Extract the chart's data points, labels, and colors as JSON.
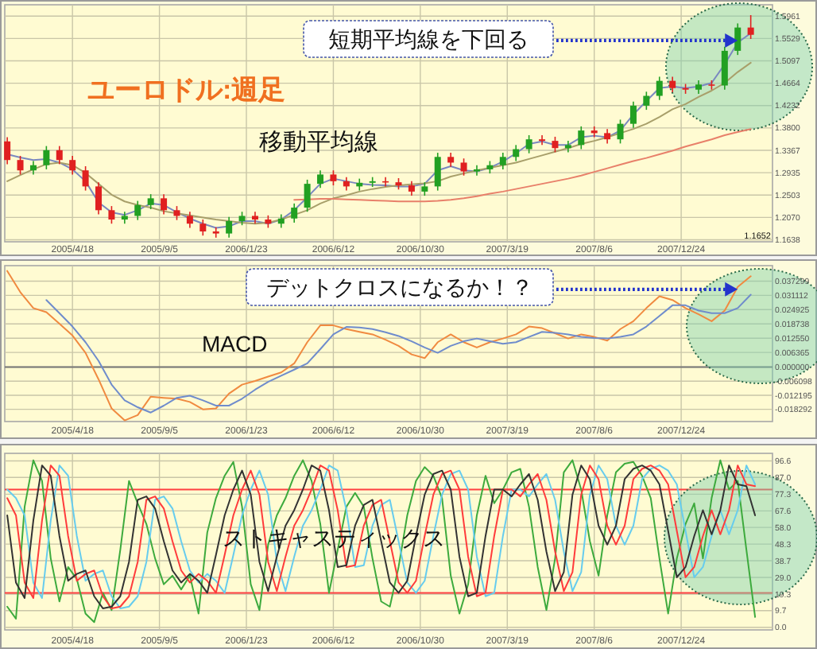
{
  "chart_data": [
    {
      "type": "candlestick",
      "title": "ユーロドル:週足",
      "x": [
        "2005-01-03",
        "2005-01-24",
        "2005-02-14",
        "2005-03-07",
        "2005-03-28",
        "2005-04-18",
        "2005-05-09",
        "2005-05-30",
        "2005-06-20",
        "2005-07-11",
        "2005-08-01",
        "2005-08-22",
        "2005-09-12",
        "2005-10-03",
        "2005-10-24",
        "2005-11-14",
        "2005-12-05",
        "2005-12-26",
        "2006-01-16",
        "2006-02-06",
        "2006-02-27",
        "2006-03-20",
        "2006-04-10",
        "2006-05-01",
        "2006-05-22",
        "2006-06-12",
        "2006-07-03",
        "2006-07-24",
        "2006-08-14",
        "2006-09-04",
        "2006-09-25",
        "2006-10-16",
        "2006-11-06",
        "2006-11-27",
        "2006-12-18",
        "2007-01-08",
        "2007-01-29",
        "2007-02-19",
        "2007-03-12",
        "2007-04-02",
        "2007-04-23",
        "2007-05-14",
        "2007-06-04",
        "2007-06-25",
        "2007-07-16",
        "2007-08-06",
        "2007-08-27",
        "2007-09-17",
        "2007-10-08",
        "2007-10-29",
        "2007-11-19",
        "2007-12-10",
        "2007-12-31",
        "2008-01-21",
        "2008-02-11",
        "2008-03-03",
        "2008-03-24",
        "2008-04-14"
      ],
      "ohlc": [
        [
          1.354,
          1.362,
          1.31,
          1.318
        ],
        [
          1.318,
          1.326,
          1.29,
          1.298
        ],
        [
          1.298,
          1.316,
          1.29,
          1.308
        ],
        [
          1.308,
          1.345,
          1.3,
          1.337
        ],
        [
          1.337,
          1.345,
          1.31,
          1.318
        ],
        [
          1.318,
          1.326,
          1.29,
          1.298
        ],
        [
          1.298,
          1.306,
          1.259,
          1.267
        ],
        [
          1.267,
          1.275,
          1.213,
          1.221
        ],
        [
          1.221,
          1.229,
          1.195,
          1.203
        ],
        [
          1.203,
          1.218,
          1.195,
          1.21
        ],
        [
          1.21,
          1.239,
          1.202,
          1.231
        ],
        [
          1.231,
          1.252,
          1.223,
          1.244
        ],
        [
          1.244,
          1.252,
          1.213,
          1.221
        ],
        [
          1.221,
          1.229,
          1.202,
          1.21
        ],
        [
          1.21,
          1.218,
          1.187,
          1.195
        ],
        [
          1.195,
          1.203,
          1.172,
          1.18
        ],
        [
          1.18,
          1.188,
          1.168,
          1.176
        ],
        [
          1.176,
          1.208,
          1.168,
          1.2
        ],
        [
          1.2,
          1.218,
          1.192,
          1.21
        ],
        [
          1.21,
          1.218,
          1.195,
          1.203
        ],
        [
          1.203,
          1.211,
          1.187,
          1.195
        ],
        [
          1.195,
          1.213,
          1.187,
          1.205
        ],
        [
          1.205,
          1.234,
          1.197,
          1.226
        ],
        [
          1.226,
          1.28,
          1.218,
          1.272
        ],
        [
          1.272,
          1.298,
          1.264,
          1.29
        ],
        [
          1.29,
          1.298,
          1.269,
          1.277
        ],
        [
          1.277,
          1.285,
          1.259,
          1.267
        ],
        [
          1.267,
          1.282,
          1.259,
          1.274
        ],
        [
          1.274,
          1.285,
          1.266,
          1.277
        ],
        [
          1.277,
          1.285,
          1.267,
          1.275
        ],
        [
          1.275,
          1.283,
          1.261,
          1.269
        ],
        [
          1.269,
          1.277,
          1.249,
          1.257
        ],
        [
          1.257,
          1.275,
          1.249,
          1.267
        ],
        [
          1.267,
          1.332,
          1.259,
          1.324
        ],
        [
          1.324,
          1.332,
          1.305,
          1.313
        ],
        [
          1.313,
          1.321,
          1.288,
          1.296
        ],
        [
          1.296,
          1.308,
          1.288,
          1.3
        ],
        [
          1.3,
          1.316,
          1.292,
          1.308
        ],
        [
          1.308,
          1.332,
          1.3,
          1.324
        ],
        [
          1.324,
          1.347,
          1.316,
          1.339
        ],
        [
          1.339,
          1.366,
          1.331,
          1.358
        ],
        [
          1.358,
          1.366,
          1.347,
          1.355
        ],
        [
          1.355,
          1.363,
          1.333,
          1.341
        ],
        [
          1.341,
          1.355,
          1.333,
          1.347
        ],
        [
          1.347,
          1.383,
          1.339,
          1.375
        ],
        [
          1.375,
          1.383,
          1.362,
          1.37
        ],
        [
          1.37,
          1.378,
          1.35,
          1.358
        ],
        [
          1.358,
          1.396,
          1.35,
          1.388
        ],
        [
          1.388,
          1.431,
          1.38,
          1.423
        ],
        [
          1.423,
          1.45,
          1.415,
          1.442
        ],
        [
          1.442,
          1.479,
          1.434,
          1.471
        ],
        [
          1.471,
          1.479,
          1.449,
          1.457
        ],
        [
          1.457,
          1.465,
          1.446,
          1.454
        ],
        [
          1.454,
          1.472,
          1.446,
          1.464
        ],
        [
          1.464,
          1.472,
          1.454,
          1.462
        ],
        [
          1.462,
          1.537,
          1.454,
          1.529
        ],
        [
          1.529,
          1.582,
          1.521,
          1.574
        ],
        [
          1.574,
          1.598,
          1.552,
          1.56
        ]
      ],
      "colors": [
        "#e02020",
        "#e02020",
        "#22a022",
        "#22a022",
        "#e02020",
        "#e02020",
        "#e02020",
        "#e02020",
        "#e02020",
        "#22a022",
        "#22a022",
        "#22a022",
        "#e02020",
        "#e02020",
        "#e02020",
        "#e02020",
        "#e02020",
        "#22a022",
        "#22a022",
        "#e02020",
        "#e02020",
        "#22a022",
        "#22a022",
        "#22a022",
        "#22a022",
        "#e02020",
        "#e02020",
        "#22a022",
        "#22a022",
        "#e02020",
        "#e02020",
        "#e02020",
        "#22a022",
        "#22a022",
        "#e02020",
        "#e02020",
        "#22a022",
        "#22a022",
        "#22a022",
        "#22a022",
        "#22a022",
        "#e02020",
        "#e02020",
        "#22a022",
        "#22a022",
        "#e02020",
        "#e02020",
        "#22a022",
        "#22a022",
        "#22a022",
        "#22a022",
        "#e02020",
        "#e02020",
        "#22a022",
        "#e02020",
        "#22a022",
        "#22a022",
        "#e02020"
      ],
      "series": [
        {
          "type": "line",
          "color": "#7a88c0",
          "values": [
            1.329,
            1.323,
            1.318,
            1.32,
            1.313,
            1.3,
            1.277,
            1.236,
            1.217,
            1.212,
            1.221,
            1.234,
            1.231,
            1.217,
            1.205,
            1.195,
            1.187,
            1.19,
            1.2,
            1.2,
            1.195,
            1.203,
            1.221,
            1.246,
            1.272,
            1.282,
            1.277,
            1.272,
            1.27,
            1.269,
            1.267,
            1.267,
            1.272,
            1.298,
            1.306,
            1.298,
            1.296,
            1.303,
            1.315,
            1.331,
            1.349,
            1.354,
            1.347,
            1.347,
            1.362,
            1.365,
            1.362,
            1.375,
            1.406,
            1.432,
            1.457,
            1.46,
            1.457,
            1.46,
            1.467,
            1.503,
            1.545,
            1.563
          ]
        },
        {
          "type": "line",
          "color": "#a89f6a",
          "values": [
            1.277,
            1.289,
            1.3,
            1.31,
            1.313,
            1.308,
            1.293,
            1.272,
            1.251,
            1.238,
            1.231,
            1.226,
            1.219,
            1.215,
            1.211,
            1.207,
            1.203,
            1.2,
            1.197,
            1.195,
            1.197,
            1.203,
            1.212,
            1.221,
            1.234,
            1.244,
            1.25,
            1.257,
            1.262,
            1.266,
            1.269,
            1.271,
            1.273,
            1.277,
            1.286,
            1.292,
            1.298,
            1.303,
            1.308,
            1.313,
            1.32,
            1.327,
            1.334,
            1.341,
            1.349,
            1.355,
            1.362,
            1.37,
            1.378,
            1.388,
            1.401,
            1.416,
            1.426,
            1.44,
            1.452,
            1.467,
            1.488,
            1.506
          ]
        },
        {
          "type": "line",
          "color": "#e8806a",
          "values": [
            null,
            null,
            null,
            null,
            null,
            null,
            null,
            null,
            null,
            null,
            null,
            null,
            null,
            null,
            null,
            null,
            null,
            null,
            null,
            null,
            null,
            null,
            1.241,
            1.242,
            1.243,
            1.243,
            1.242,
            1.241,
            1.24,
            1.239,
            1.238,
            1.238,
            1.238,
            1.239,
            1.241,
            1.244,
            1.248,
            1.253,
            1.257,
            1.262,
            1.267,
            1.272,
            1.277,
            1.282,
            1.288,
            1.295,
            1.302,
            1.309,
            1.316,
            1.322,
            1.329,
            1.336,
            1.344,
            1.351,
            1.358,
            1.366,
            1.372,
            1.378
          ]
        }
      ],
      "xlim": [
        "2004-12-30",
        "2008-05-19"
      ],
      "ylim": [
        1.16,
        1.618
      ],
      "xticks": [
        {
          "value": "2005-04-18",
          "label": "2005/4/18"
        },
        {
          "value": "2005-09-05",
          "label": "2005/9/5"
        },
        {
          "value": "2006-01-23",
          "label": "2006/1/23"
        },
        {
          "value": "2006-06-12",
          "label": "2006/6/12"
        },
        {
          "value": "2006-10-30",
          "label": "2006/10/30"
        },
        {
          "value": "2007-03-19",
          "label": "2007/3/19"
        },
        {
          "value": "2007-08-06",
          "label": "2007/8/6"
        },
        {
          "value": "2007-12-24",
          "label": "2007/12/24"
        }
      ],
      "yticks": [
        1.5961,
        1.5529,
        1.5097,
        1.4664,
        1.4232,
        {
          "value": 1.38,
          "label": "1.3800"
        },
        1.3367,
        1.2935,
        1.2503,
        {
          "value": 1.207,
          "label": "1.2070"
        },
        1.1638
      ],
      "grid": true,
      "annotations": [
        {
          "text": "短期平均線を下回る",
          "x": "2008-03-24",
          "y": 1.549
        },
        "移動平均線",
        "1.1652"
      ]
    },
    {
      "type": "line",
      "x": [
        "2005-01-03",
        "2005-01-24",
        "2005-02-14",
        "2005-03-07",
        "2005-03-28",
        "2005-04-18",
        "2005-05-09",
        "2005-05-30",
        "2005-06-20",
        "2005-07-11",
        "2005-08-01",
        "2005-08-22",
        "2005-09-12",
        "2005-10-03",
        "2005-10-24",
        "2005-11-14",
        "2005-12-05",
        "2005-12-26",
        "2006-01-16",
        "2006-02-06",
        "2006-02-27",
        "2006-03-20",
        "2006-04-10",
        "2006-05-01",
        "2006-05-22",
        "2006-06-12",
        "2006-07-03",
        "2006-07-24",
        "2006-08-14",
        "2006-09-04",
        "2006-09-25",
        "2006-10-16",
        "2006-11-06",
        "2006-11-27",
        "2006-12-18",
        "2007-01-08",
        "2007-01-29",
        "2007-02-19",
        "2007-03-12",
        "2007-04-02",
        "2007-04-23",
        "2007-05-14",
        "2007-06-04",
        "2007-06-25",
        "2007-07-16",
        "2007-08-06",
        "2007-08-27",
        "2007-09-17",
        "2007-10-08",
        "2007-10-29",
        "2007-11-19",
        "2007-12-10",
        "2007-12-31",
        "2008-01-21",
        "2008-02-11",
        "2008-03-03",
        "2008-03-24",
        "2008-04-14"
      ],
      "series": [
        {
          "type": "line",
          "color": "#f08a40",
          "values": [
            0.0417,
            0.0325,
            0.0256,
            0.0238,
            0.0188,
            0.0137,
            0.0062,
            -0.0053,
            -0.0179,
            -0.0231,
            -0.0208,
            -0.0128,
            -0.0133,
            -0.0137,
            -0.0151,
            -0.0183,
            -0.0179,
            -0.0115,
            -0.0076,
            -0.006,
            -0.0041,
            -0.0023,
            0.0016,
            0.0108,
            0.0181,
            0.0181,
            0.0165,
            0.0153,
            0.0142,
            0.0119,
            0.0092,
            0.0055,
            0.0039,
            0.0108,
            0.0142,
            0.0108,
            0.0085,
            0.0108,
            0.0124,
            0.0142,
            0.0176,
            0.0169,
            0.0147,
            0.0124,
            0.0142,
            0.0131,
            0.0115,
            0.0165,
            0.0199,
            0.0256,
            0.0307,
            0.0291,
            0.0256,
            0.0229,
            0.0199,
            0.0245,
            0.0348,
            0.0394
          ]
        },
        {
          "type": "line",
          "color": "#6f8ccc",
          "values": [
            null,
            null,
            null,
            0.0291,
            0.0234,
            0.0176,
            0.0108,
            0.0027,
            -0.0076,
            -0.0144,
            -0.0174,
            -0.0197,
            -0.0167,
            -0.0133,
            -0.0124,
            -0.0144,
            -0.0167,
            -0.0167,
            -0.0137,
            -0.0098,
            -0.0064,
            -0.0037,
            -0.0011,
            0.0016,
            0.0078,
            0.0142,
            0.0174,
            0.0172,
            0.0165,
            0.0151,
            0.0135,
            0.0112,
            0.0085,
            0.0062,
            0.0092,
            0.0112,
            0.0124,
            0.0112,
            0.0101,
            0.0108,
            0.0131,
            0.0153,
            0.0149,
            0.0142,
            0.0131,
            0.0126,
            0.0124,
            0.0131,
            0.0142,
            0.0176,
            0.0222,
            0.0268,
            0.0268,
            0.0245,
            0.0234,
            0.0234,
            0.0256,
            0.0314
          ]
        }
      ],
      "xlim": [
        "2004-12-30",
        "2008-05-19"
      ],
      "ylim": [
        -0.0236,
        0.044
      ],
      "xticks": [
        {
          "value": "2005-04-18",
          "label": "2005/4/18"
        },
        {
          "value": "2005-09-05",
          "label": "2005/9/5"
        },
        {
          "value": "2006-01-23",
          "label": "2006/1/23"
        },
        {
          "value": "2006-06-12",
          "label": "2006/6/12"
        },
        {
          "value": "2006-10-30",
          "label": "2006/10/30"
        },
        {
          "value": "2007-03-19",
          "label": "2007/3/19"
        },
        {
          "value": "2007-08-06",
          "label": "2007/8/6"
        },
        {
          "value": "2007-12-24",
          "label": "2007/12/24"
        }
      ],
      "yticks": [
        0.037299,
        0.031112,
        0.024925,
        0.018738,
        {
          "value": 0.01255,
          "label": "0.012550"
        },
        0.006365,
        {
          "value": 0,
          "label": "0.000000"
        },
        -0.006098,
        -0.012195,
        -0.018292
      ],
      "grid": true,
      "ref_lines": [
        {
          "axis": "y",
          "value": 0,
          "color": "#777777"
        }
      ],
      "annotations": [
        {
          "text": "デットクロスになるか！？",
          "x": "2008-03-24",
          "y": 0.0337
        },
        "MACD"
      ]
    },
    {
      "type": "line",
      "x": [
        "2005-01-03",
        "2005-01-17",
        "2005-01-31",
        "2005-02-14",
        "2005-02-28",
        "2005-03-14",
        "2005-03-28",
        "2005-04-11",
        "2005-04-25",
        "2005-05-09",
        "2005-05-23",
        "2005-06-06",
        "2005-06-20",
        "2005-07-04",
        "2005-07-18",
        "2005-08-01",
        "2005-08-15",
        "2005-08-29",
        "2005-09-12",
        "2005-09-26",
        "2005-10-10",
        "2005-10-24",
        "2005-11-07",
        "2005-11-21",
        "2005-12-05",
        "2005-12-19",
        "2006-01-02",
        "2006-01-16",
        "2006-01-30",
        "2006-02-13",
        "2006-02-27",
        "2006-03-13",
        "2006-03-27",
        "2006-04-10",
        "2006-04-24",
        "2006-05-08",
        "2006-05-22",
        "2006-06-05",
        "2006-06-19",
        "2006-07-03",
        "2006-07-17",
        "2006-07-31",
        "2006-08-14",
        "2006-08-28",
        "2006-09-11",
        "2006-09-25",
        "2006-10-09",
        "2006-10-23",
        "2006-11-06",
        "2006-11-20",
        "2006-12-04",
        "2006-12-18",
        "2007-01-01",
        "2007-01-15",
        "2007-01-29",
        "2007-02-12",
        "2007-02-26",
        "2007-03-12",
        "2007-03-26",
        "2007-04-09",
        "2007-04-23",
        "2007-05-07",
        "2007-05-21",
        "2007-06-04",
        "2007-06-18",
        "2007-07-02",
        "2007-07-16",
        "2007-07-30",
        "2007-08-13",
        "2007-08-27",
        "2007-09-10",
        "2007-09-24",
        "2007-10-08",
        "2007-10-22",
        "2007-11-05",
        "2007-11-19",
        "2007-12-03",
        "2007-12-17",
        "2007-12-31",
        "2008-01-14",
        "2008-01-28",
        "2008-02-11",
        "2008-02-25",
        "2008-03-10",
        "2008-03-24",
        "2008-04-07",
        "2008-04-21"
      ],
      "series": [
        {
          "type": "line",
          "color": "#3daa3d",
          "values": [
            12,
            5,
            70,
            97,
            85,
            40,
            15,
            35,
            28,
            8,
            3,
            20,
            10,
            45,
            85,
            72,
            60,
            40,
            25,
            30,
            22,
            30,
            8,
            55,
            75,
            88,
            96,
            70,
            25,
            10,
            48,
            65,
            75,
            88,
            97,
            85,
            60,
            20,
            45,
            70,
            78,
            70,
            40,
            15,
            12,
            35,
            65,
            85,
            93,
            88,
            75,
            30,
            8,
            25,
            65,
            88,
            72,
            80,
            90,
            92,
            70,
            35,
            10,
            40,
            90,
            97,
            80,
            50,
            30,
            65,
            90,
            95,
            96,
            88,
            75,
            40,
            8,
            40,
            60,
            72,
            40,
            75,
            97,
            80,
            85,
            45,
            6
          ]
        },
        {
          "type": "line",
          "color": "#66ccee",
          "values": [
            80,
            75,
            65,
            26,
            17,
            62,
            94,
            88,
            53,
            27,
            31,
            33,
            18,
            11,
            12,
            18,
            38,
            74,
            76,
            69,
            50,
            33,
            26,
            31,
            27,
            20,
            42,
            65,
            80,
            91,
            77,
            38,
            21,
            41,
            59,
            68,
            80,
            94,
            91,
            68,
            35,
            36,
            59,
            71,
            74,
            50,
            26,
            20,
            27,
            53,
            77,
            89,
            91,
            80,
            41,
            18,
            20,
            53,
            80,
            80,
            76,
            83,
            89,
            74,
            44,
            21,
            32,
            77,
            94,
            86,
            59,
            48,
            59,
            86,
            92,
            94,
            91,
            83,
            56,
            29,
            35,
            53,
            68,
            54,
            68,
            94,
            83
          ]
        },
        {
          "type": "line",
          "color": "#ff3b3b",
          "values": [
            75,
            65,
            26,
            17,
            62,
            94,
            88,
            53,
            27,
            31,
            33,
            18,
            11,
            12,
            18,
            38,
            74,
            76,
            69,
            50,
            33,
            26,
            31,
            27,
            20,
            42,
            65,
            80,
            91,
            77,
            38,
            21,
            41,
            59,
            68,
            80,
            94,
            91,
            68,
            35,
            36,
            59,
            71,
            74,
            50,
            26,
            20,
            27,
            53,
            77,
            89,
            91,
            80,
            41,
            18,
            20,
            53,
            80,
            80,
            76,
            83,
            89,
            74,
            44,
            21,
            32,
            77,
            94,
            86,
            59,
            48,
            59,
            86,
            92,
            94,
            91,
            83,
            56,
            29,
            35,
            53,
            68,
            54,
            68,
            94,
            83,
            82
          ]
        },
        {
          "type": "line",
          "color": "#333333",
          "values": [
            65,
            26,
            17,
            62,
            94,
            88,
            53,
            27,
            31,
            33,
            18,
            11,
            12,
            18,
            38,
            74,
            76,
            69,
            50,
            33,
            26,
            31,
            27,
            20,
            42,
            65,
            80,
            91,
            77,
            38,
            21,
            41,
            59,
            68,
            80,
            94,
            91,
            68,
            35,
            36,
            59,
            71,
            74,
            50,
            26,
            20,
            27,
            53,
            77,
            89,
            91,
            80,
            41,
            18,
            20,
            53,
            80,
            80,
            76,
            83,
            89,
            74,
            44,
            21,
            32,
            77,
            94,
            86,
            59,
            48,
            59,
            86,
            92,
            94,
            91,
            83,
            56,
            29,
            35,
            53,
            68,
            54,
            68,
            94,
            83,
            82,
            65
          ]
        }
      ],
      "xlim": [
        "2004-12-30",
        "2008-05-19"
      ],
      "ylim": [
        -1.5,
        101
      ],
      "xticks": [
        {
          "value": "2005-04-18",
          "label": "2005/4/18"
        },
        {
          "value": "2005-09-05",
          "label": "2005/9/5"
        },
        {
          "value": "2006-01-23",
          "label": "2006/1/23"
        },
        {
          "value": "2006-06-12",
          "label": "2006/6/12"
        },
        {
          "value": "2006-10-30",
          "label": "2006/10/30"
        },
        {
          "value": "2007-03-19",
          "label": "2007/3/19"
        },
        {
          "value": "2007-08-06",
          "label": "2007/8/6"
        },
        {
          "value": "2007-12-24",
          "label": "2007/12/24"
        }
      ],
      "yticks": [
        96.6,
        {
          "value": 87,
          "label": "87.0"
        },
        77.3,
        67.6,
        {
          "value": 58,
          "label": "58.0"
        },
        48.3,
        38.7,
        {
          "value": 29,
          "label": "29.0"
        },
        19.3,
        9.7,
        {
          "value": 0,
          "label": "0.0"
        }
      ],
      "grid": true,
      "ref_lines": [
        {
          "axis": "y",
          "value": 80,
          "color": "#ff4040"
        },
        {
          "axis": "y",
          "value": 20,
          "color": "#ff4040"
        }
      ],
      "annotations": [
        "ストキャスティックス"
      ]
    }
  ]
}
